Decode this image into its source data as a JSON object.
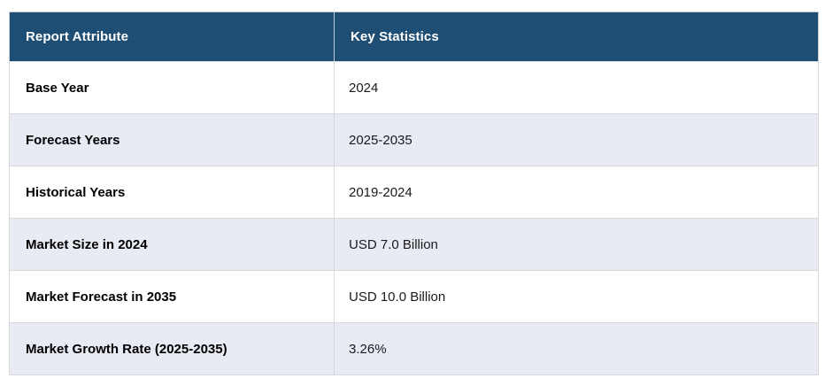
{
  "table": {
    "columns": [
      {
        "label": "Report Attribute"
      },
      {
        "label": "Key Statistics"
      }
    ],
    "rows": [
      {
        "attribute": "Base Year",
        "value": "2024"
      },
      {
        "attribute": "Forecast Years",
        "value": "2025-2035"
      },
      {
        "attribute": "Historical Years",
        "value": "2019-2024"
      },
      {
        "attribute": "Market Size in 2024",
        "value": "USD 7.0 Billion"
      },
      {
        "attribute": "Market Forecast in 2035",
        "value": "USD 10.0 Billion"
      },
      {
        "attribute": "Market Growth Rate (2025-2035)",
        "value": "3.26%"
      }
    ]
  },
  "colors": {
    "header_bg": "#1f4e74",
    "header_text": "#ffffff",
    "row_bg": "#ffffff",
    "row_alt_bg": "#e8eaf4",
    "border": "#d9d9d9",
    "text": "#1a1a1a"
  }
}
